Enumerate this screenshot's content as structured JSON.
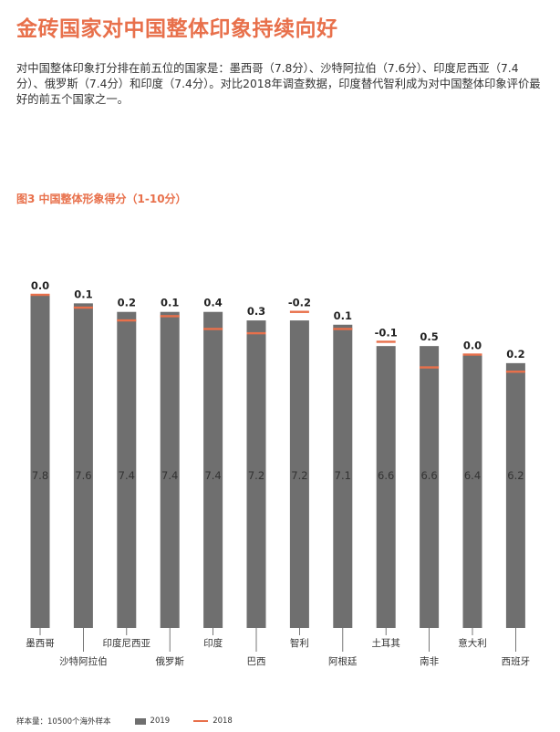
{
  "header": {
    "title": "金砖国家对中国整体印象持续向好",
    "intro": "对中国整体印象打分排在前五位的国家是：墨西哥（7.8分）、沙特阿拉伯（7.6分）、印度尼西亚（7.4分）、俄罗斯（7.4分）和印度（7.4分）。对比2018年调查数据，印度替代智利成为对中国整体印象评价最好的前五个国家之一。"
  },
  "chart_title": "图3  中国整体形象得分（1-10分）",
  "chart_data": {
    "type": "bar",
    "categories": [
      "墨西哥",
      "沙特阿拉伯",
      "印度尼西亚",
      "俄罗斯",
      "印度",
      "巴西",
      "智利",
      "阿根廷",
      "土耳其",
      "南非",
      "意大利",
      "西班牙"
    ],
    "series": [
      {
        "name": "2019",
        "values": [
          7.8,
          7.6,
          7.4,
          7.4,
          7.4,
          7.2,
          7.2,
          7.1,
          6.6,
          6.6,
          6.4,
          6.2
        ]
      },
      {
        "name": "2018",
        "values": [
          7.8,
          7.5,
          7.2,
          7.3,
          7.0,
          6.9,
          7.4,
          7.0,
          6.7,
          6.1,
          6.4,
          6.0
        ]
      }
    ],
    "change_labels": [
      "0.0",
      "0.1",
      "0.2",
      "0.1",
      "0.4",
      "0.3",
      "-0.2",
      "0.1",
      "-0.1",
      "0.5",
      "0.0",
      "0.2"
    ],
    "ylim": [
      0,
      7.8
    ],
    "colors": {
      "bar": "#6f6f6f",
      "marker": "#e8704b"
    }
  },
  "footer": {
    "sample": "样本量：10500个海外样本",
    "legend_2019": "2019",
    "legend_2018": "2018"
  }
}
